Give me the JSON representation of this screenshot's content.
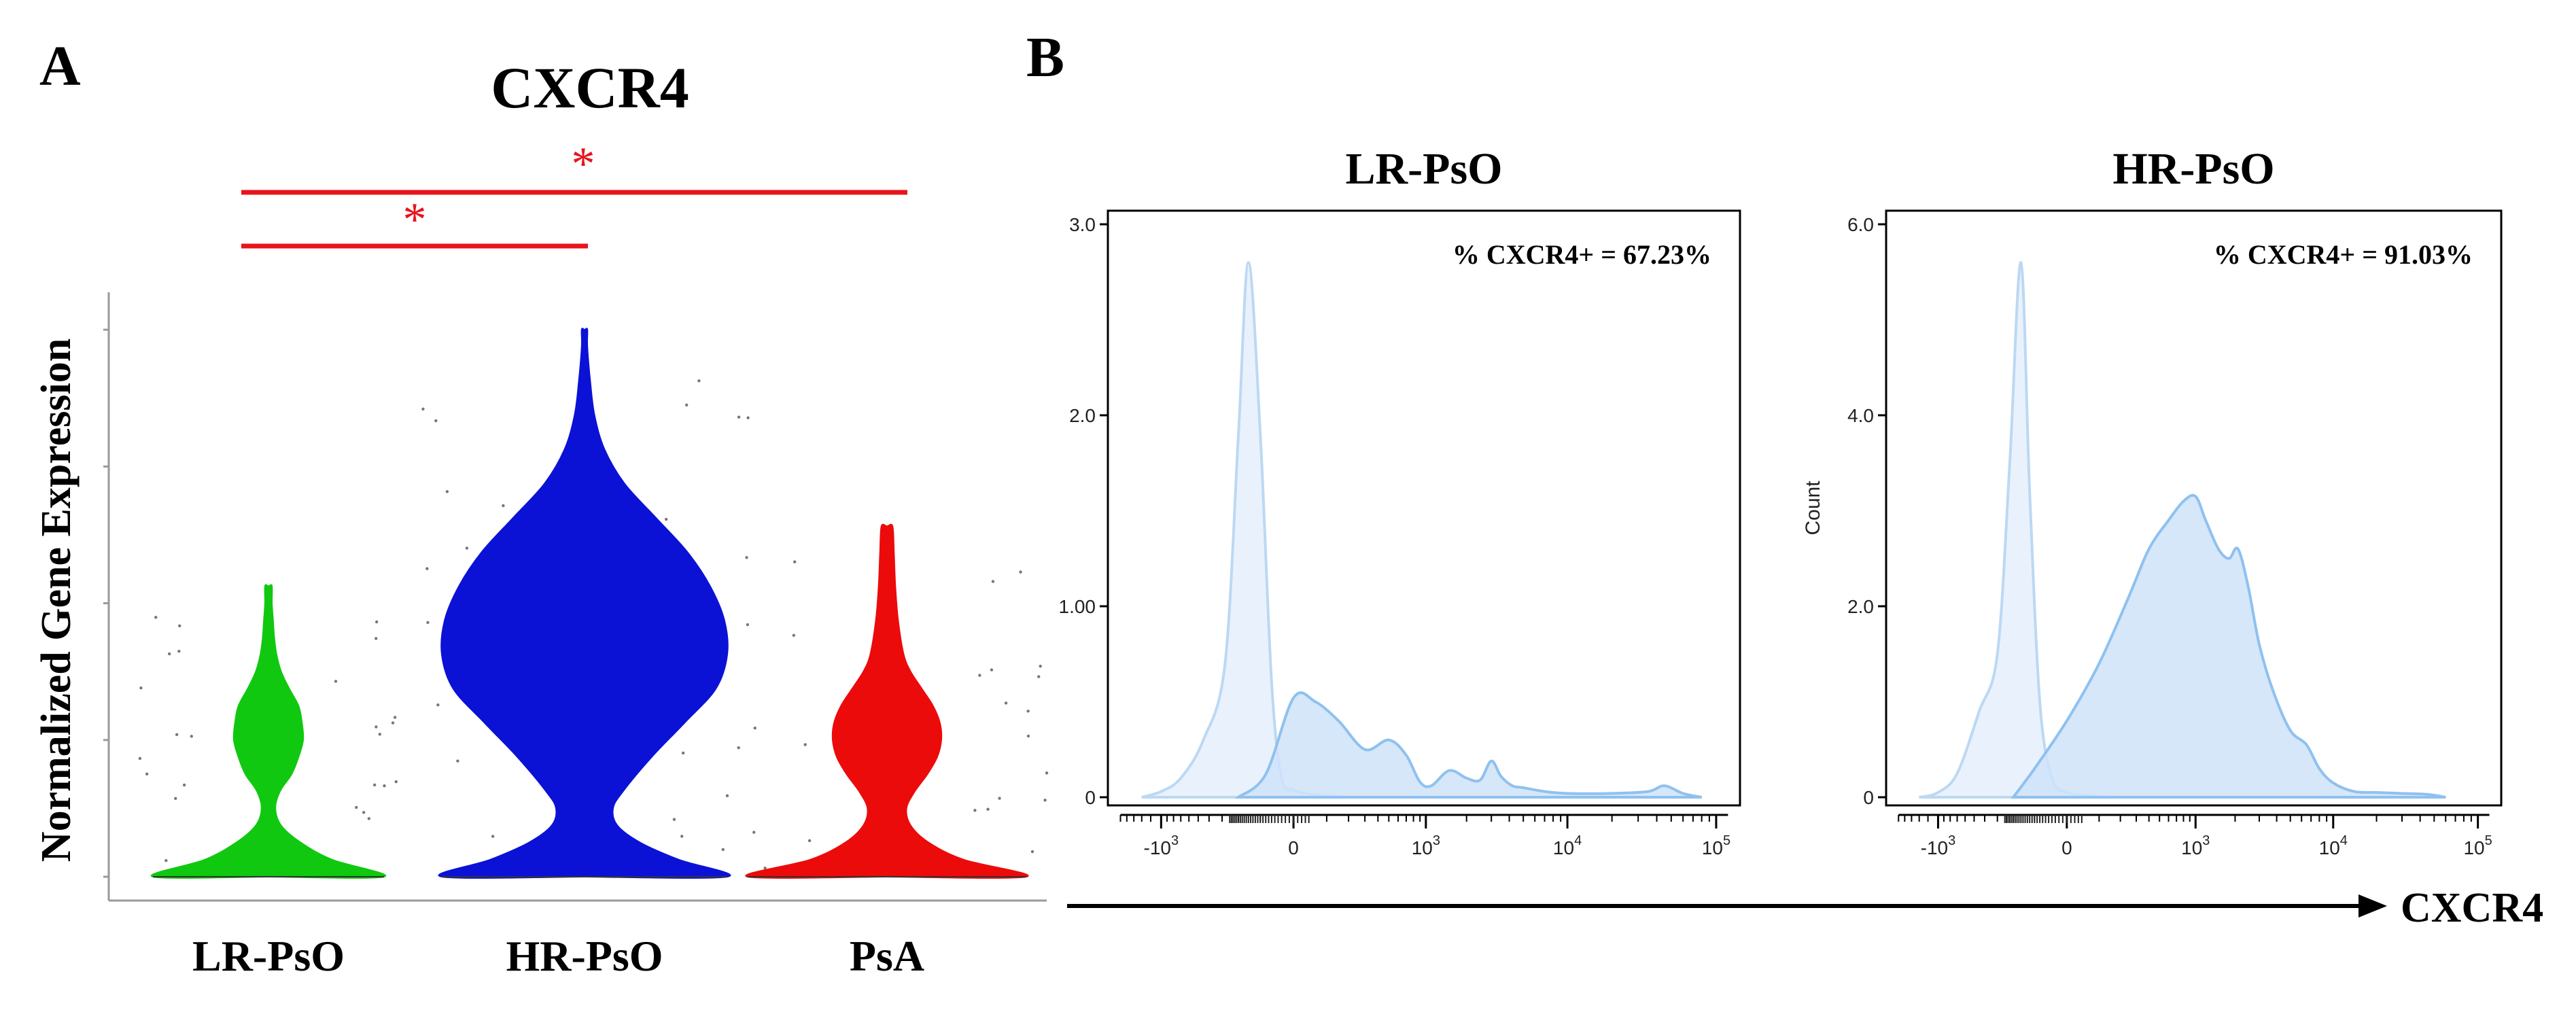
{
  "panel_a": {
    "letter": "A",
    "title": "CXCR4",
    "ylabel": "Normalized Gene Expression",
    "significance_symbol": "*",
    "significance_color": "#e8141c",
    "comparisons": [
      {
        "from": "LR-PsO",
        "to": "PsA",
        "label": "*"
      },
      {
        "from": "LR-PsO",
        "to": "HR-PsO",
        "label": "*"
      }
    ]
  },
  "panel_b": {
    "letter": "B",
    "xlabel": "CXCR4",
    "fill_color": "#cfe3f9",
    "line_color": "#8fc1ef",
    "control_fill": "#e7f1fc",
    "control_line": "#bcd8f3"
  },
  "chart_data": [
    {
      "type": "violin",
      "title": "CXCR4",
      "xlabel": "",
      "ylabel": "Normalized Gene Expression",
      "categories": [
        "LR-PsO",
        "HR-PsO",
        "PsA"
      ],
      "ylim": [
        0,
        3.3
      ],
      "series": [
        {
          "name": "LR-PsO",
          "color": "#10c810",
          "y": [
            0,
            0.1,
            0.2,
            0.3,
            0.4,
            0.5,
            0.6,
            0.7,
            0.8,
            0.9,
            1.0,
            1.1,
            1.2,
            1.3,
            1.4,
            1.5,
            1.6,
            1.7
          ],
          "width": [
            1.0,
            0.55,
            0.28,
            0.11,
            0.06,
            0.1,
            0.2,
            0.26,
            0.3,
            0.29,
            0.26,
            0.18,
            0.11,
            0.07,
            0.05,
            0.04,
            0.03,
            0.03
          ],
          "max": 1.7
        },
        {
          "name": "HR-PsO",
          "color": "#0b12d6",
          "y": [
            0,
            0.1,
            0.2,
            0.3,
            0.4,
            0.5,
            0.7,
            0.9,
            1.1,
            1.3,
            1.5,
            1.7,
            1.9,
            2.1,
            2.3,
            2.5,
            2.7,
            2.9,
            3.1,
            3.2
          ],
          "width": [
            1.0,
            0.66,
            0.39,
            0.23,
            0.2,
            0.27,
            0.47,
            0.7,
            0.92,
            1.0,
            0.98,
            0.88,
            0.72,
            0.5,
            0.28,
            0.14,
            0.07,
            0.04,
            0.02,
            0.02
          ],
          "max": 3.2
        },
        {
          "name": "PsA",
          "color": "#ec0b0b",
          "y": [
            0,
            0.1,
            0.2,
            0.3,
            0.4,
            0.5,
            0.6,
            0.7,
            0.8,
            0.9,
            1.0,
            1.1,
            1.2,
            1.3,
            1.5,
            1.7,
            1.9,
            2.05
          ],
          "width": [
            1.0,
            0.55,
            0.3,
            0.17,
            0.14,
            0.2,
            0.29,
            0.36,
            0.39,
            0.38,
            0.33,
            0.25,
            0.17,
            0.12,
            0.08,
            0.06,
            0.05,
            0.04
          ],
          "max": 2.05
        }
      ]
    },
    {
      "type": "area",
      "title": "LR-PsO",
      "annotation": "% CXCR4+ = 67.23%",
      "xlabel": "CXCR4",
      "ylabel": "",
      "x_scale": "biexponential",
      "x_ticks": [
        {
          "label": "-10",
          "sup": "3",
          "pos": -1000
        },
        {
          "label": "0",
          "sup": "",
          "pos": 0
        },
        {
          "label": "10",
          "sup": "3",
          "pos": 1000
        },
        {
          "label": "10",
          "sup": "4",
          "pos": 10000
        },
        {
          "label": "10",
          "sup": "5",
          "pos": 100000
        }
      ],
      "y_ticks": [
        "3.0",
        "2.0",
        "1.00",
        "0"
      ],
      "y_tick_values": [
        3.0,
        2.0,
        1.0,
        0
      ],
      "ylim": [
        0,
        3.0
      ],
      "series": [
        {
          "name": "control",
          "x": [
            -1400,
            -1000,
            -700,
            -450,
            -280,
            -200,
            -150,
            -100,
            -60,
            -30,
            0,
            30,
            80,
            200
          ],
          "y": [
            0,
            0.03,
            0.1,
            0.3,
            0.7,
            1.9,
            2.8,
            1.9,
            0.6,
            0.1,
            0.04,
            0.02,
            0.01,
            0
          ]
        },
        {
          "name": "CXCR4",
          "x": [
            -200,
            -80,
            0,
            60,
            150,
            300,
            500,
            700,
            900,
            1100,
            1500,
            2000,
            2500,
            3000,
            3500,
            4200,
            5000,
            7000,
            10000,
            20000,
            35000,
            45000,
            60000,
            80000
          ],
          "y": [
            0,
            0.12,
            0.52,
            0.5,
            0.4,
            0.25,
            0.3,
            0.22,
            0.08,
            0.06,
            0.14,
            0.1,
            0.09,
            0.19,
            0.11,
            0.06,
            0.05,
            0.03,
            0.02,
            0.02,
            0.03,
            0.06,
            0.02,
            0
          ]
        }
      ]
    },
    {
      "type": "area",
      "title": "HR-PsO",
      "annotation": "% CXCR4+ = 91.03%",
      "xlabel": "CXCR4",
      "ylabel": "Count",
      "x_scale": "biexponential",
      "x_ticks": [
        {
          "label": "-10",
          "sup": "3",
          "pos": -1000
        },
        {
          "label": "0",
          "sup": "",
          "pos": 0
        },
        {
          "label": "10",
          "sup": "3",
          "pos": 1000
        },
        {
          "label": "10",
          "sup": "4",
          "pos": 10000
        },
        {
          "label": "10",
          "sup": "5",
          "pos": 100000
        }
      ],
      "y_ticks": [
        "6.0",
        "4.0",
        "2.0",
        "0"
      ],
      "y_tick_values": [
        6.0,
        4.0,
        2.0,
        0
      ],
      "ylim": [
        0,
        6.0
      ],
      "series": [
        {
          "name": "control",
          "x": [
            -1400,
            -1000,
            -700,
            -450,
            -300,
            -220,
            -160,
            -120,
            -80,
            -40,
            0,
            50,
            150
          ],
          "y": [
            0,
            0.05,
            0.25,
            0.9,
            1.5,
            3.5,
            5.6,
            3.2,
            1.0,
            0.2,
            0.05,
            0.02,
            0
          ]
        },
        {
          "name": "CXCR4",
          "x": [
            -200,
            -100,
            0,
            100,
            250,
            400,
            600,
            800,
            1000,
            1200,
            1500,
            1800,
            2100,
            2500,
            3000,
            3800,
            5000,
            6500,
            8000,
            10000,
            14000,
            20000,
            30000,
            45000,
            60000
          ],
          "y": [
            0,
            0.3,
            0.8,
            1.4,
            2.1,
            2.6,
            2.9,
            3.1,
            3.15,
            2.9,
            2.6,
            2.5,
            2.6,
            2.2,
            1.6,
            1.1,
            0.7,
            0.55,
            0.3,
            0.15,
            0.06,
            0.05,
            0.04,
            0.03,
            0
          ]
        }
      ]
    }
  ]
}
